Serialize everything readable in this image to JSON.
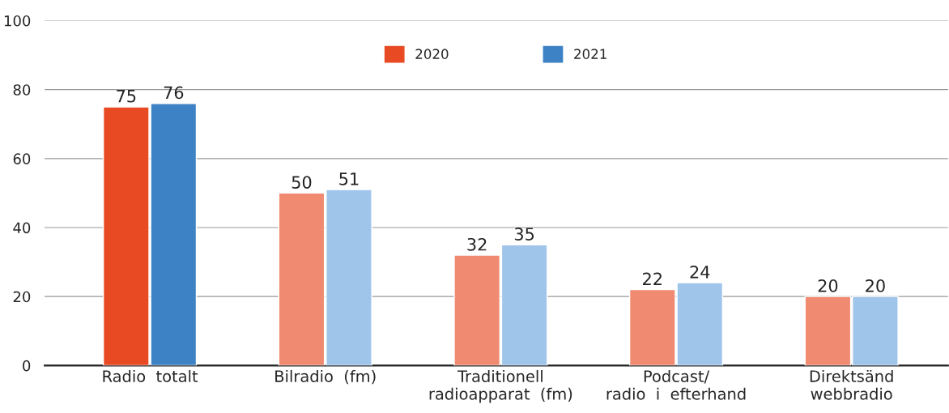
{
  "chart_data": {
    "type": "bar",
    "categories": [
      "Radio  totalt",
      "Bilradio  (fm)",
      "Traditionell\nradioapparat  (fm)",
      "Podcast/\nradio  i  efterhand",
      "Direktsänd\nwebbradio"
    ],
    "series": [
      {
        "name": "2020",
        "color": "#e84a23",
        "colors": [
          "#e84a23",
          "#f08a70",
          "#f08a70",
          "#f08a70",
          "#f08a70"
        ],
        "values": [
          75,
          50,
          32,
          22,
          20
        ]
      },
      {
        "name": "2021",
        "color": "#3d82c4",
        "colors": [
          "#3d82c4",
          "#9fc5ea",
          "#9fc5ea",
          "#9fc5ea",
          "#9fc5ea"
        ],
        "values": [
          76,
          51,
          35,
          24,
          20
        ]
      }
    ],
    "ylim": [
      0,
      100
    ],
    "yticks": [
      0,
      20,
      40,
      60,
      80,
      100
    ],
    "grid": "y",
    "legend": "top",
    "data_labels": true
  }
}
